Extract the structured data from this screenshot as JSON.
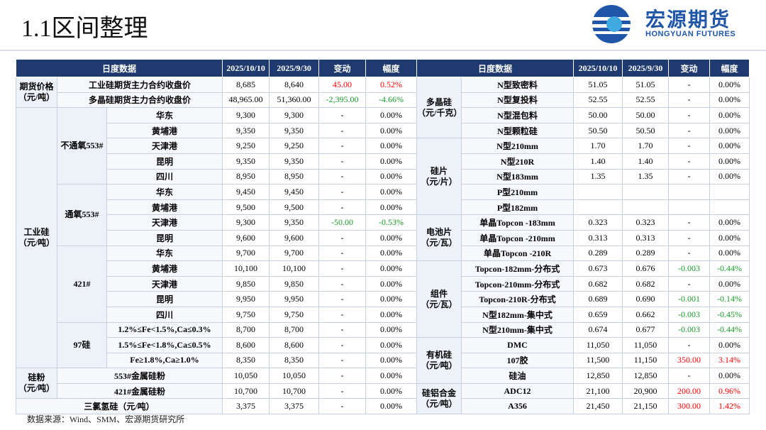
{
  "header": {
    "title": "1.1区间整理",
    "logo": {
      "name": "宏源期货",
      "subtitle": "HONGYUAN FUTURES"
    }
  },
  "left": {
    "header": [
      "日度数据",
      "2025/10/10",
      "2025/9/30",
      "变动",
      "幅度"
    ],
    "sections": [
      {
        "label": "期货价格",
        "unit": "（元/吨）",
        "rows": [
          {
            "item": "工业硅期货主力合约收盘价",
            "values": [
              "8,685",
              "8,640",
              "45.00",
              "0.52%"
            ]
          },
          {
            "item": "多晶硅期货主力合约收盘价",
            "values": [
              "48,965.00",
              "51,360.00",
              "-2,395.00",
              "-4.66%"
            ]
          }
        ]
      },
      {
        "label": "工业硅",
        "unit": "（元/吨）",
        "subgroups": [
          {
            "label": "不通氧553#",
            "rows": [
              {
                "item": "华东",
                "values": [
                  "9,300",
                  "9,300",
                  "-",
                  "0.00%"
                ]
              },
              {
                "item": "黄埔港",
                "values": [
                  "9,350",
                  "9,350",
                  "-",
                  "0.00%"
                ]
              },
              {
                "item": "天津港",
                "values": [
                  "9,250",
                  "9,250",
                  "-",
                  "0.00%"
                ]
              },
              {
                "item": "昆明",
                "values": [
                  "9,350",
                  "9,350",
                  "-",
                  "0.00%"
                ]
              },
              {
                "item": "四川",
                "values": [
                  "8,950",
                  "8,950",
                  "-",
                  "0.00%"
                ]
              }
            ]
          },
          {
            "label": "通氧553#",
            "rows": [
              {
                "item": "华东",
                "values": [
                  "9,450",
                  "9,450",
                  "-",
                  "0.00%"
                ]
              },
              {
                "item": "黄埔港",
                "values": [
                  "9,500",
                  "9,500",
                  "-",
                  "0.00%"
                ]
              },
              {
                "item": "天津港",
                "values": [
                  "9,300",
                  "9,350",
                  "-50.00",
                  "-0.53%"
                ]
              },
              {
                "item": "昆明",
                "values": [
                  "9,600",
                  "9,600",
                  "-",
                  "0.00%"
                ]
              }
            ]
          },
          {
            "label": "421#",
            "rows": [
              {
                "item": "华东",
                "values": [
                  "9,700",
                  "9,700",
                  "-",
                  "0.00%"
                ]
              },
              {
                "item": "黄埔港",
                "values": [
                  "10,100",
                  "10,100",
                  "-",
                  "0.00%"
                ]
              },
              {
                "item": "天津港",
                "values": [
                  "9,850",
                  "9,850",
                  "-",
                  "0.00%"
                ]
              },
              {
                "item": "昆明",
                "values": [
                  "9,950",
                  "9,950",
                  "-",
                  "0.00%"
                ]
              },
              {
                "item": "四川",
                "values": [
                  "9,750",
                  "9,750",
                  "-",
                  "0.00%"
                ]
              }
            ]
          },
          {
            "label": "97硅",
            "rows": [
              {
                "item": "1.2%≤Fe<1.5%,Ca≤0.3%",
                "values": [
                  "8,700",
                  "8,700",
                  "-",
                  "0.00%"
                ]
              },
              {
                "item": "1.5%≤Fe<1.8%,Ca≤0.5%",
                "values": [
                  "8,600",
                  "8,600",
                  "-",
                  "0.00%"
                ]
              },
              {
                "item": "Fe≥1.8%,Ca≥1.0%",
                "values": [
                  "8,350",
                  "8,350",
                  "-",
                  "0.00%"
                ]
              }
            ]
          }
        ]
      },
      {
        "label": "硅粉",
        "unit": "（元/吨）",
        "rows": [
          {
            "item": "553#金属硅粉",
            "values": [
              "10,050",
              "10,050",
              "-",
              "0.00%"
            ]
          },
          {
            "item": "421#金属硅粉",
            "values": [
              "10,700",
              "10,700",
              "-",
              "0.00%"
            ]
          }
        ]
      },
      {
        "rows": [
          {
            "item": "三氯氢硅（元/吨）",
            "values": [
              "3,375",
              "3,375",
              "-",
              "0.00%"
            ]
          }
        ]
      }
    ]
  },
  "right": {
    "header": [
      "日度数据",
      "2025/10/10",
      "2025/9/30",
      "变动",
      "幅度"
    ],
    "sections": [
      {
        "label": "多晶硅",
        "unit": "（元/千克）",
        "rows": [
          {
            "item": "N型致密料",
            "values": [
              "51.05",
              "51.05",
              "-",
              "0.00%"
            ]
          },
          {
            "item": "N型复投料",
            "values": [
              "52.55",
              "52.55",
              "-",
              "0.00%"
            ]
          },
          {
            "item": "N型混包料",
            "values": [
              "50.00",
              "50.00",
              "-",
              "0.00%"
            ]
          },
          {
            "item": "N型颗粒硅",
            "values": [
              "50.50",
              "50.50",
              "-",
              "0.00%"
            ]
          }
        ]
      },
      {
        "label": "硅片",
        "unit": "（元/片）",
        "rows": [
          {
            "item": "N型210mm",
            "values": [
              "1.70",
              "1.70",
              "-",
              "0.00%"
            ]
          },
          {
            "item": "N型210R",
            "values": [
              "1.40",
              "1.40",
              "-",
              "0.00%"
            ]
          },
          {
            "item": "N型183mm",
            "values": [
              "1.35",
              "1.35",
              "-",
              "0.00%"
            ]
          },
          {
            "item": "P型210mm"
          },
          {
            "item": "P型182mm"
          }
        ]
      },
      {
        "label": "电池片",
        "unit": "（元/瓦）",
        "rows": [
          {
            "item": "单晶Topcon -183mm",
            "values": [
              "0.323",
              "0.323",
              "-",
              "0.00%"
            ]
          },
          {
            "item": "单晶Topcon -210mm",
            "values": [
              "0.313",
              "0.313",
              "-",
              "0.00%"
            ]
          },
          {
            "item": "单晶Topcon -210R",
            "values": [
              "0.289",
              "0.289",
              "-",
              "0.00%"
            ]
          }
        ]
      },
      {
        "label": "组件",
        "unit": "（元/瓦）",
        "rows": [
          {
            "item": "Topcon-182mm-分布式",
            "values": [
              "0.673",
              "0.676",
              "-0.003",
              "-0.44%"
            ]
          },
          {
            "item": "Topcon-210mm-分布式",
            "values": [
              "0.682",
              "0.682",
              "-",
              "0.00%"
            ]
          },
          {
            "item": "Topcon-210R-分布式",
            "values": [
              "0.689",
              "0.690",
              "-0.001",
              "-0.14%"
            ]
          },
          {
            "item": "N型182mm-集中式",
            "values": [
              "0.659",
              "0.662",
              "-0.003",
              "-0.45%"
            ]
          },
          {
            "item": "N型210mm-集中式",
            "values": [
              "0.674",
              "0.677",
              "-0.003",
              "-0.44%"
            ]
          }
        ]
      },
      {
        "label": "有机硅",
        "unit": "（元/吨）",
        "rows": [
          {
            "item": "DMC",
            "values": [
              "11,050",
              "11,050",
              "-",
              "0.00%"
            ]
          },
          {
            "item": "107胶",
            "values": [
              "11,500",
              "11,150",
              "350.00",
              "3.14%"
            ]
          },
          {
            "item": "硅油",
            "values": [
              "12,850",
              "12,850",
              "-",
              "0.00%"
            ]
          }
        ]
      },
      {
        "label": "硅铝合金",
        "unit": "（元/吨）",
        "rows": [
          {
            "item": "ADC12",
            "values": [
              "21,100",
              "20,900",
              "200.00",
              "0.96%"
            ]
          },
          {
            "item": "A356",
            "values": [
              "21,450",
              "21,150",
              "300.00",
              "1.42%"
            ]
          }
        ]
      }
    ]
  },
  "footer": {
    "source": "数据来源：Wind、SMM、宏源期货研究所"
  }
}
